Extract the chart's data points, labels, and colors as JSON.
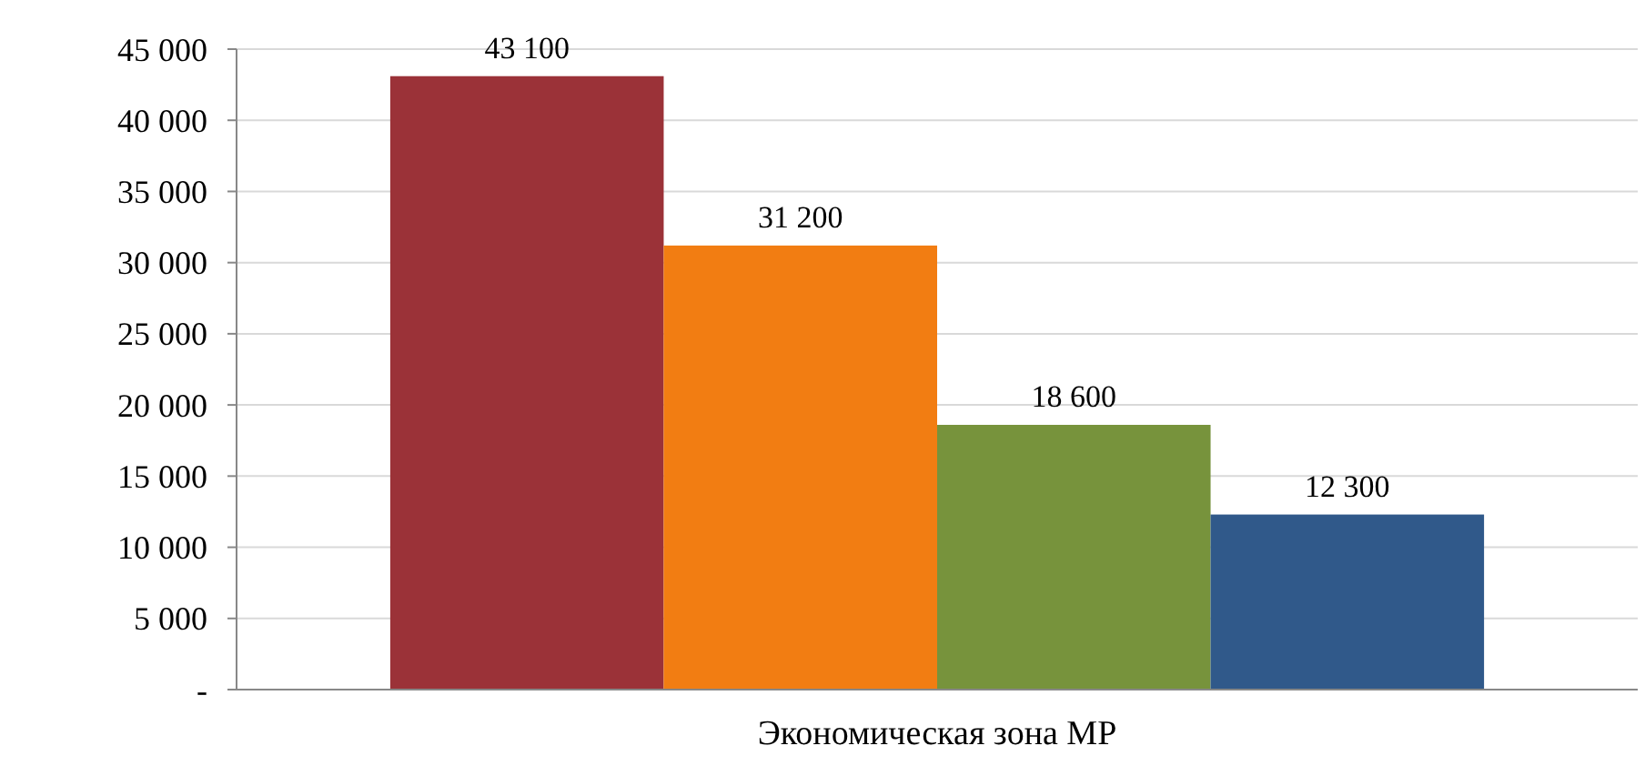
{
  "chart_data": {
    "type": "bar",
    "categories": [
      "Экономическая зона МР"
    ],
    "series": [
      {
        "color": "#9b3238",
        "values": [
          43100
        ],
        "value_labels": [
          "43 100"
        ]
      },
      {
        "color": "#f27d12",
        "values": [
          31200
        ],
        "value_labels": [
          "31 200"
        ]
      },
      {
        "color": "#77933c",
        "values": [
          18600
        ],
        "value_labels": [
          "18 600"
        ]
      },
      {
        "color": "#30598a",
        "values": [
          12300
        ],
        "value_labels": [
          "12 300"
        ]
      }
    ],
    "ylim": [
      0,
      45000
    ],
    "yticks": [
      {
        "value": 0,
        "label": "-"
      },
      {
        "value": 5000,
        "label": "5 000"
      },
      {
        "value": 10000,
        "label": "10 000"
      },
      {
        "value": 15000,
        "label": "15 000"
      },
      {
        "value": 20000,
        "label": "20 000"
      },
      {
        "value": 25000,
        "label": "25 000"
      },
      {
        "value": 30000,
        "label": "30 000"
      },
      {
        "value": 35000,
        "label": "35 000"
      },
      {
        "value": 40000,
        "label": "40 000"
      },
      {
        "value": 45000,
        "label": "45 000"
      }
    ],
    "grid": "y"
  }
}
